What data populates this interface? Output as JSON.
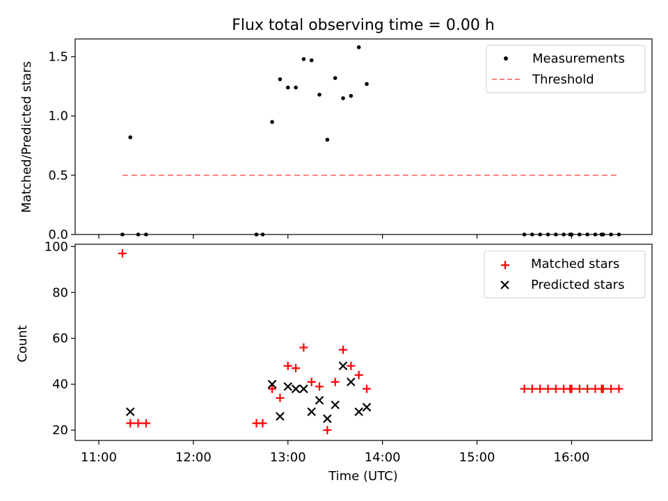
{
  "chart_data": [
    {
      "type": "scatter",
      "title": "Flux total observing time = 0.00 h",
      "xlabel": "",
      "ylabel": "Matched/Predicted stars",
      "xlim": [
        "10:45",
        "16:51"
      ],
      "ylim": [
        0,
        1.65
      ],
      "yticks": [
        0.0,
        0.5,
        1.0,
        1.5
      ],
      "ytick_labels": [
        "0.0",
        "0.5",
        "1.0",
        "1.5"
      ],
      "legend_position": "top-right",
      "series": [
        {
          "name": "Measurements",
          "marker": "dot",
          "color": "#000000",
          "x": [
            "11:15",
            "11:20",
            "11:25",
            "11:30",
            "12:40",
            "12:44",
            "12:50",
            "12:55",
            "13:00",
            "13:05",
            "13:10",
            "13:15",
            "13:20",
            "13:25",
            "13:30",
            "13:35",
            "13:40",
            "13:45",
            "13:50",
            "15:30",
            "15:35",
            "15:40",
            "15:45",
            "15:50",
            "15:55",
            "15:59",
            "16:00",
            "16:05",
            "16:10",
            "16:15",
            "16:19",
            "16:20",
            "16:25",
            "16:30"
          ],
          "y": [
            0.0,
            0.82,
            0.0,
            0.0,
            0.0,
            0.0,
            0.95,
            1.31,
            1.24,
            1.24,
            1.48,
            1.47,
            1.18,
            0.8,
            1.32,
            1.15,
            1.17,
            1.58,
            1.27,
            0.0,
            0.0,
            0.0,
            0.0,
            0.0,
            0.0,
            0.0,
            0.0,
            0.0,
            0.0,
            0.0,
            0.0,
            0.0,
            0.0,
            0.0
          ]
        },
        {
          "name": "Threshold",
          "marker": "dashed-line",
          "color": "#ff7f7f",
          "x": [
            "11:15",
            "16:30"
          ],
          "y": [
            0.5,
            0.5
          ]
        }
      ]
    },
    {
      "type": "scatter",
      "title": "",
      "xlabel": "Time (UTC)",
      "ylabel": "Count",
      "xlim": [
        "10:45",
        "16:51"
      ],
      "ylim": [
        15.5,
        101
      ],
      "yticks": [
        20,
        40,
        60,
        80,
        100
      ],
      "ytick_labels": [
        "20",
        "40",
        "60",
        "80",
        "100"
      ],
      "xticks": [
        "11:00",
        "12:00",
        "13:00",
        "14:00",
        "15:00",
        "16:00"
      ],
      "xtick_labels": [
        "11:00",
        "12:00",
        "13:00",
        "14:00",
        "15:00",
        "16:00"
      ],
      "legend_position": "top-right",
      "series": [
        {
          "name": "Matched stars",
          "marker": "plus",
          "color": "#ff0000",
          "x": [
            "11:15",
            "11:20",
            "11:25",
            "11:30",
            "12:40",
            "12:44",
            "12:50",
            "12:55",
            "13:00",
            "13:05",
            "13:10",
            "13:15",
            "13:20",
            "13:25",
            "13:30",
            "13:35",
            "13:40",
            "13:45",
            "13:50",
            "15:30",
            "15:35",
            "15:40",
            "15:45",
            "15:50",
            "15:55",
            "15:59",
            "16:00",
            "16:05",
            "16:10",
            "16:15",
            "16:19",
            "16:20",
            "16:25",
            "16:30"
          ],
          "y": [
            97,
            23,
            23,
            23,
            23,
            23,
            38,
            34,
            48,
            47,
            56,
            41,
            39,
            20,
            41,
            55,
            48,
            44,
            38,
            38,
            38,
            38,
            38,
            38,
            38,
            38,
            38,
            38,
            38,
            38,
            38,
            38,
            38,
            38
          ]
        },
        {
          "name": "Predicted stars",
          "marker": "x",
          "color": "#000000",
          "x": [
            "11:20",
            "12:50",
            "12:55",
            "13:00",
            "13:05",
            "13:10",
            "13:15",
            "13:20",
            "13:25",
            "13:30",
            "13:35",
            "13:40",
            "13:45",
            "13:50"
          ],
          "y": [
            28,
            40,
            26,
            39,
            38,
            38,
            28,
            33,
            25,
            31,
            48,
            41,
            28,
            30
          ]
        }
      ]
    }
  ],
  "colors": {
    "measurements": "#000000",
    "threshold": "#ff7f7f",
    "matched": "#ff0000",
    "predicted": "#000000"
  }
}
